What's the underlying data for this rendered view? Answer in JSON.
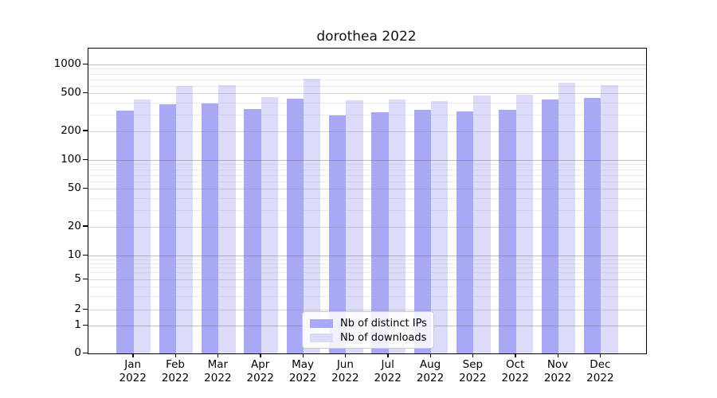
{
  "chart_data": {
    "type": "bar",
    "title": "dorothea 2022",
    "categories": [
      "Jan 2022",
      "Feb 2022",
      "Mar 2022",
      "Apr 2022",
      "May 2022",
      "Jun 2022",
      "Jul 2022",
      "Aug 2022",
      "Sep 2022",
      "Oct 2022",
      "Nov 2022",
      "Dec 2022"
    ],
    "x_tick_month": [
      "Jan",
      "Feb",
      "Mar",
      "Apr",
      "May",
      "Jun",
      "Jul",
      "Aug",
      "Sep",
      "Oct",
      "Nov",
      "Dec"
    ],
    "x_tick_year": "2022",
    "series": [
      {
        "name": "Nb of distinct IPs",
        "color": "#a8a8f6",
        "values": [
          330,
          382,
          394,
          341,
          436,
          291,
          317,
          333,
          322,
          338,
          427,
          449
        ]
      },
      {
        "name": "Nb of downloads",
        "color": "#dbdbfa",
        "values": [
          428,
          595,
          612,
          455,
          703,
          421,
          431,
          416,
          474,
          479,
          642,
          608
        ]
      }
    ],
    "yscale": "symlog",
    "ylim": [
      0,
      1500
    ],
    "y_tick_values": [
      1000,
      500,
      200,
      100,
      50,
      20,
      10,
      5,
      2,
      1,
      0
    ],
    "y_tick_labels": [
      "1000",
      "500",
      "200",
      "100",
      "50",
      "20",
      "10",
      "5",
      "2",
      "1",
      "0"
    ],
    "y_minor_values": [
      900,
      800,
      700,
      600,
      400,
      300,
      90,
      80,
      70,
      60,
      40,
      30,
      9,
      8,
      7,
      6,
      4,
      3
    ],
    "grid": true,
    "legend_position": "lower center",
    "bar_group_width": 0.8
  }
}
